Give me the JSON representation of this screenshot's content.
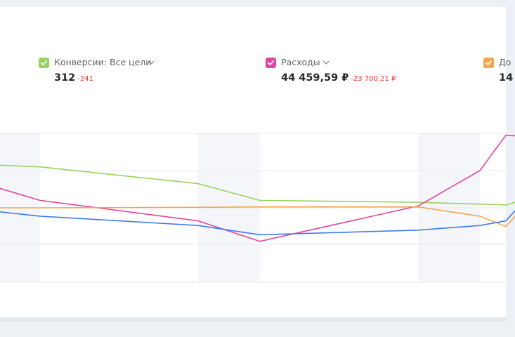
{
  "metrics": [
    {
      "label": "Конверсии: Все цели",
      "value": "312",
      "delta": "-241",
      "color": "#99d15c",
      "icon": "check-icon"
    },
    {
      "label": "Расходы",
      "value": "44 459,59 ₽",
      "delta": "-23 700,21 ₽",
      "color": "#e2459f",
      "icon": "check-icon"
    },
    {
      "label": "До",
      "value": "14",
      "delta": "",
      "color": "#f4a64a",
      "icon": "check-icon"
    }
  ],
  "chart_data": {
    "type": "line",
    "x": [
      0,
      1,
      2,
      3,
      4,
      5,
      6,
      7
    ],
    "grid": true,
    "shaded_bands": [
      [
        0,
        0
      ],
      [
        3,
        3
      ],
      [
        6,
        6
      ]
    ],
    "series": [
      {
        "color": "#99d15c",
        "values": [
          90,
          88,
          70,
          52,
          50,
          48,
          47,
          56
        ]
      },
      {
        "color": "#e2459f",
        "values": [
          66,
          52,
          30,
          8,
          46,
          84,
          122,
          120
        ]
      },
      {
        "color": "#f4a64a",
        "values": [
          44,
          44,
          44.5,
          45,
          45,
          35,
          24,
          57
        ]
      },
      {
        "color": "#3f7de8",
        "values": [
          40,
          35,
          25,
          15,
          20,
          25,
          30,
          63
        ]
      }
    ],
    "ylim": [
      -36,
      124
    ]
  }
}
